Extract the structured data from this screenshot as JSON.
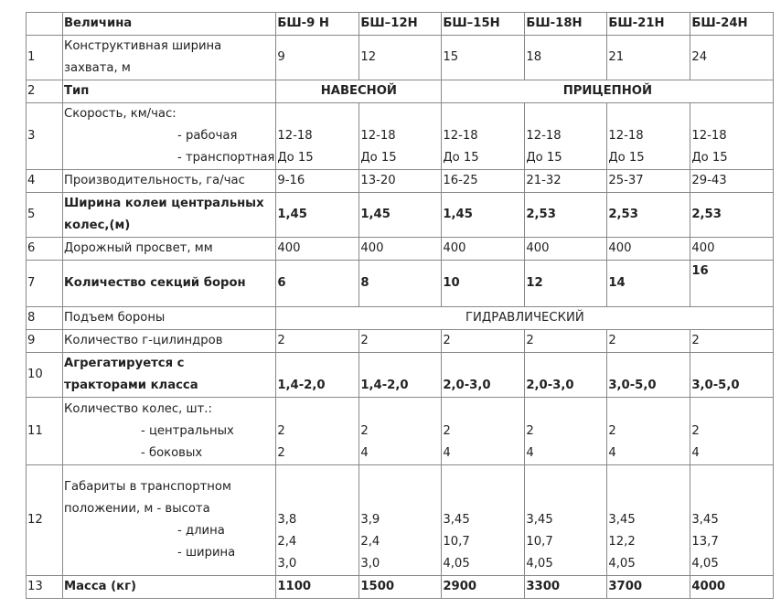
{
  "header": {
    "label": "Величина",
    "models": [
      "БШ-9 Н",
      "БШ–12Н",
      "БШ–15Н",
      "БШ-18Н",
      "БШ-21Н",
      "БШ-24Н"
    ]
  },
  "rows": [
    {
      "n": "1",
      "label": [
        "Конструктивная  ширина",
        "захвата, м"
      ],
      "values": [
        "9",
        "12",
        "15",
        "18",
        "21",
        "24"
      ]
    },
    {
      "n": "2",
      "label": "Тип",
      "spans": [
        "НАВЕСНОЙ",
        "ПРИЦЕПНОЙ"
      ]
    },
    {
      "n": "3",
      "label": "Скорость, км/час:",
      "sub": [
        "- рабочая",
        "- транспортная"
      ],
      "values": [
        [
          "12-18",
          "До 15"
        ],
        [
          "12-18",
          "До 15"
        ],
        [
          "12-18",
          "До 15"
        ],
        [
          "12-18",
          "До 15"
        ],
        [
          "12-18",
          "До 15"
        ],
        [
          "12-18",
          "До 15"
        ]
      ]
    },
    {
      "n": "4",
      "label": "Производительность, га/час",
      "values": [
        "9-16",
        "13-20",
        "16-25",
        "21-32",
        "25-37",
        "29-43"
      ]
    },
    {
      "n": "5",
      "label": [
        "Ширина колеи центральных",
        "колес,(м)"
      ],
      "values": [
        "1,45",
        "1,45",
        "1,45",
        "2,53",
        "2,53",
        "2,53"
      ]
    },
    {
      "n": "6",
      "label": "Дорожный  просвет, мм",
      "values": [
        "400",
        "400",
        "400",
        "400",
        "400",
        "400"
      ]
    },
    {
      "n": "7",
      "label": "Количество  секций  борон",
      "values": [
        "6",
        "8",
        "10",
        "12",
        "14",
        "16"
      ]
    },
    {
      "n": "8",
      "label": "Подъем бороны",
      "span": "ГИДРАВЛИЧЕСКИЙ"
    },
    {
      "n": "9",
      "label": "Количество г-цилиндров",
      "values": [
        "2",
        "2",
        "2",
        "2",
        "2",
        "2"
      ]
    },
    {
      "n": "10",
      "label": [
        "Агрегатируется с",
        "тракторами  класса"
      ],
      "values": [
        "1,4-2,0",
        "1,4-2,0",
        "2,0-3,0",
        "2,0-3,0",
        "3,0-5,0",
        "3,0-5,0"
      ]
    },
    {
      "n": "11",
      "label": " Количество колес, шт.:",
      "sub": [
        "- центральных",
        "- боковых"
      ],
      "values": [
        [
          "2",
          "2"
        ],
        [
          "2",
          "4"
        ],
        [
          "2",
          "4"
        ],
        [
          "2",
          "4"
        ],
        [
          "2",
          "4"
        ],
        [
          "2",
          "4"
        ]
      ]
    },
    {
      "n": "12",
      "label": [
        "Габариты  в транспортном",
        "положении, м     - высота"
      ],
      "sub": [
        "- длина",
        "- ширина"
      ],
      "values": [
        [
          "3,8",
          "2,4",
          "3,0"
        ],
        [
          "3,9",
          "2,4",
          "3,0"
        ],
        [
          "3,45",
          "10,7",
          "4,05"
        ],
        [
          "3,45",
          "10,7",
          "4,05"
        ],
        [
          "3,45",
          "12,2",
          "4,05"
        ],
        [
          "3,45",
          "13,7",
          "4,05"
        ]
      ]
    },
    {
      "n": "13",
      "label": "Масса (кг)",
      "values": [
        "1100",
        "1500",
        " 2900",
        "3300",
        "3700",
        "4000"
      ]
    }
  ]
}
